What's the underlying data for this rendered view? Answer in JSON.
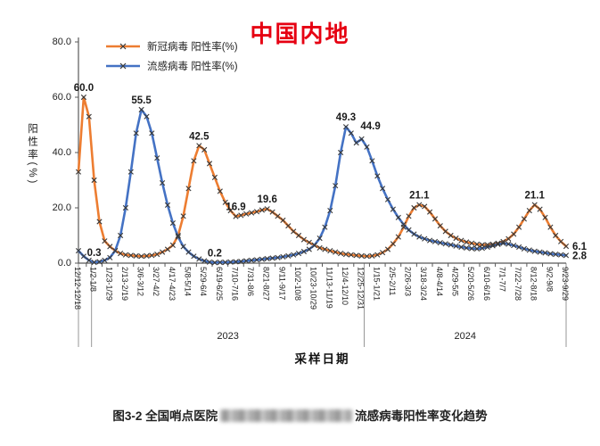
{
  "title": "中国内地",
  "title_color": "#e60012",
  "marker_color": "#3a3a3a",
  "legend": {
    "items": [
      {
        "label": "新冠病毒 阳性率(%)",
        "color": "#ED7D31"
      },
      {
        "label": "流感病毒 阳性率(%)",
        "color": "#4472C4"
      }
    ]
  },
  "axis": {
    "y_title": "阳性率(%)",
    "x_title": "采样日期",
    "yticks": [
      "0.0",
      "20.0",
      "40.0",
      "60.0",
      "80.0"
    ]
  },
  "caption": {
    "prefix": "图3-2 全国哨点医院",
    "suffix": "流感病毒阳性率变化趋势",
    "redacted": true
  },
  "chart_data": {
    "type": "line",
    "title": "中国内地",
    "xlabel": "采样日期",
    "ylabel": "阳性率(%)",
    "ylim": [
      0,
      80
    ],
    "grid": false,
    "legend_position": "top-left",
    "x_tick_step": 3,
    "categories": [
      "12/12-12/18",
      "1/2-1/8",
      "1/23-1/29",
      "2/13-2/19",
      "3/6-3/12",
      "3/27-4/2",
      "4/17-4/23",
      "5/8-5/14",
      "5/29-6/4",
      "6/19-6/25",
      "7/10-7/16",
      "7/31-8/6",
      "8/21-8/27",
      "9/11-9/17",
      "10/2-10/8",
      "10/23-10/29",
      "11/13-11/19",
      "12/4-12/10",
      "12/25-12/31",
      "1/15-1/21",
      "2/5-2/11",
      "2/26-3/3",
      "3/18-3/24",
      "4/8-4/14",
      "4/29-5/5",
      "5/20-5/26",
      "6/10-6/16",
      "7/1-7/7",
      "7/22-7/28",
      "8/12-8/18",
      "9/2-9/8",
      "9/23-9/29"
    ],
    "series": [
      {
        "name": "新冠病毒 阳性率(%)",
        "color": "#ED7D31",
        "values": [
          33,
          60,
          53,
          30,
          15,
          8,
          6,
          4.5,
          3.5,
          3,
          2.8,
          2.6,
          2.5,
          2.6,
          2.8,
          3.2,
          4,
          5,
          6.5,
          10,
          17,
          27,
          37,
          42.5,
          41,
          36,
          31,
          26,
          22,
          19,
          16.9,
          17.3,
          17.8,
          18.2,
          18.6,
          19.2,
          19.6,
          18.5,
          17,
          15.5,
          13.5,
          11.5,
          10,
          8.5,
          7.5,
          6.5,
          5.5,
          5,
          4.5,
          4,
          3.5,
          3.2,
          3,
          2.8,
          2.6,
          2.5,
          2.6,
          3,
          3.8,
          5,
          7,
          9.5,
          13,
          17,
          20,
          21.1,
          20.5,
          18.5,
          16,
          13.5,
          11.5,
          10,
          9,
          8.2,
          7.6,
          7.2,
          6.8,
          6.6,
          6.6,
          6.8,
          7.2,
          7.8,
          8.8,
          10.5,
          13,
          16,
          19,
          21.1,
          19.5,
          16.5,
          13,
          10,
          7.8,
          6.1
        ]
      },
      {
        "name": "流感病毒 阳性率(%)",
        "color": "#4472C4",
        "values": [
          4.5,
          2.5,
          1,
          0.3,
          0.5,
          1,
          2,
          4.5,
          10,
          20,
          33,
          47,
          55.5,
          53,
          47,
          38,
          29,
          21,
          14.5,
          9.5,
          6,
          4,
          2.5,
          1.5,
          0.8,
          0.4,
          0.2,
          0.3,
          0.3,
          0.4,
          0.5,
          0.6,
          0.8,
          1,
          1.2,
          1.4,
          1.6,
          1.8,
          2,
          2.3,
          2.6,
          3,
          3.5,
          4.2,
          5,
          6.5,
          9,
          13,
          19,
          28,
          40,
          49.3,
          47,
          43.5,
          44.9,
          42,
          37,
          31.5,
          27,
          23,
          19.5,
          16.5,
          14,
          12,
          10.5,
          9.5,
          8.8,
          8.2,
          7.8,
          7.4,
          7,
          6.6,
          6.2,
          5.8,
          5.5,
          5.3,
          5.2,
          5.4,
          5.8,
          6.3,
          6.8,
          7.2,
          6.9,
          6.4,
          5.8,
          5.2,
          4.7,
          4.3,
          4,
          3.7,
          3.4,
          3.2,
          3,
          2.8
        ]
      }
    ],
    "annotations": [
      {
        "series": 0,
        "idx": 1,
        "text": "60.0",
        "anchor": "above"
      },
      {
        "series": 1,
        "idx": 3,
        "text": "0.3",
        "anchor": "above"
      },
      {
        "series": 1,
        "idx": 12,
        "text": "55.5",
        "anchor": "above"
      },
      {
        "series": 0,
        "idx": 23,
        "text": "42.5",
        "anchor": "above"
      },
      {
        "series": 1,
        "idx": 26,
        "text": "0.2",
        "anchor": "above"
      },
      {
        "series": 0,
        "idx": 30,
        "text": "16.9",
        "anchor": "above"
      },
      {
        "series": 0,
        "idx": 36,
        "text": "19.6",
        "anchor": "above"
      },
      {
        "series": 1,
        "idx": 51,
        "text": "49.3",
        "anchor": "above"
      },
      {
        "series": 1,
        "idx": 54,
        "text": "44.9",
        "anchor": "above",
        "dx": 10,
        "dy": -4
      },
      {
        "series": 0,
        "idx": 65,
        "text": "21.1",
        "anchor": "above"
      },
      {
        "series": 0,
        "idx": 87,
        "text": "21.1",
        "anchor": "above"
      },
      {
        "series": 0,
        "idx": 93,
        "text": "6.1",
        "anchor": "right"
      },
      {
        "series": 1,
        "idx": 93,
        "text": "2.8",
        "anchor": "right"
      }
    ],
    "year_groups": [
      {
        "label": "2023",
        "from": 2.5,
        "to": 54.5
      },
      {
        "label": "2024",
        "from": 54.5,
        "to": 93
      }
    ],
    "year_separators": [
      0,
      2.5,
      54.5,
      93
    ]
  }
}
